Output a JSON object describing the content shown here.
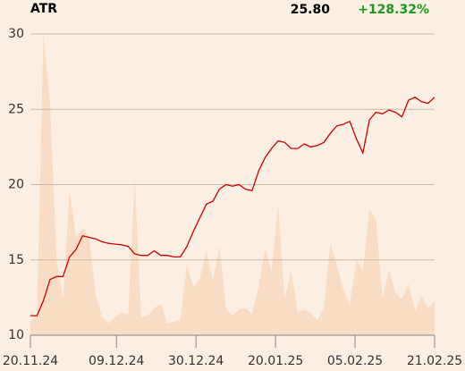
{
  "chart_data": {
    "type": "line",
    "title": "ATR",
    "last_value": "25.80",
    "change": "+128.32%",
    "change_color": "#1a9a1a",
    "xlim": [
      0,
      62
    ],
    "xticks": [
      {
        "value": 0,
        "label": "20.11.24"
      },
      {
        "value": 13.2,
        "label": "09.12.24"
      },
      {
        "value": 25.4,
        "label": "30.12.24"
      },
      {
        "value": 37.6,
        "label": "20.01.25"
      },
      {
        "value": 49.8,
        "label": "05.02.25"
      },
      {
        "value": 62,
        "label": "21.02.25"
      }
    ],
    "ylim": [
      10,
      30
    ],
    "yticks": [
      10,
      15,
      20,
      25,
      30
    ],
    "grid": true,
    "series": [
      {
        "color": "#f8dcc4",
        "kind": "area",
        "values": [
          10.9,
          11.3,
          30.0,
          25.4,
          15.0,
          12.4,
          19.7,
          16.5,
          17.1,
          16.5,
          12.7,
          11.2,
          10.8,
          11.2,
          11.5,
          11.4,
          20.4,
          11.2,
          11.3,
          11.8,
          12.1,
          10.8,
          10.9,
          11.0,
          14.7,
          13.2,
          13.8,
          15.6,
          13.6,
          15.9,
          11.8,
          11.3,
          11.7,
          11.8,
          11.4,
          13.2,
          15.8,
          14.2,
          18.7,
          12.4,
          14.3,
          11.5,
          11.7,
          11.5,
          11.0,
          11.8,
          16.1,
          14.7,
          13.0,
          12.1,
          15.0,
          14.2,
          18.4,
          17.7,
          12.4,
          14.4,
          12.8,
          12.4,
          13.4,
          11.6,
          12.6,
          11.8,
          12.3
        ]
      },
      {
        "color": "#cc0000",
        "kind": "line",
        "values": [
          11.3,
          11.3,
          12.3,
          13.7,
          13.9,
          13.9,
          15.2,
          15.7,
          16.6,
          16.5,
          16.4,
          16.2,
          16.1,
          16.05,
          16.0,
          15.9,
          15.4,
          15.3,
          15.3,
          15.6,
          15.3,
          15.3,
          15.2,
          15.2,
          15.9,
          16.9,
          17.8,
          18.7,
          18.9,
          19.7,
          20.0,
          19.9,
          20.0,
          19.7,
          19.6,
          20.9,
          21.8,
          22.4,
          22.9,
          22.8,
          22.4,
          22.4,
          22.7,
          22.5,
          22.6,
          22.8,
          23.4,
          23.9,
          24.0,
          24.2,
          23.05,
          22.1,
          24.3,
          24.8,
          24.7,
          24.95,
          24.8,
          24.5,
          25.6,
          25.8,
          25.5,
          25.4,
          25.8
        ]
      }
    ]
  }
}
